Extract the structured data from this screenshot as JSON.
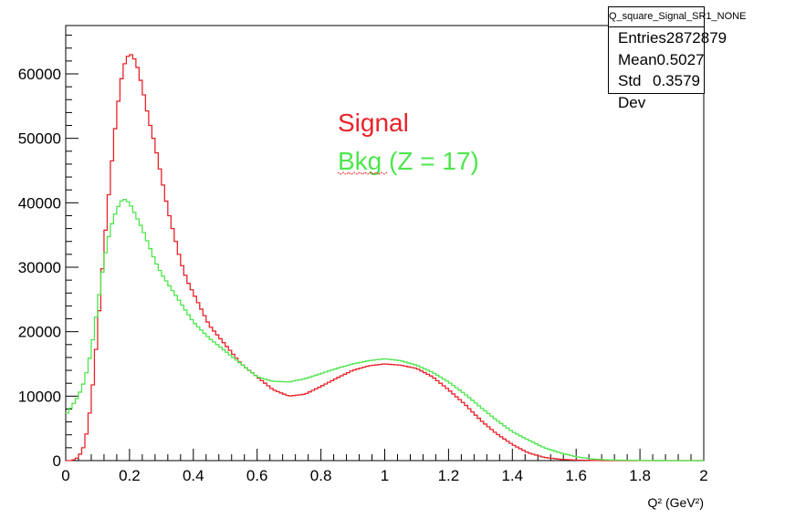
{
  "chart_data": {
    "type": "line",
    "title": "",
    "xlabel": "Q² (GeV²)",
    "ylabel": "",
    "xlim": [
      0,
      2
    ],
    "ylim": [
      0,
      67500
    ],
    "x_ticks": [
      0,
      0.2,
      0.4,
      0.6,
      0.8,
      1,
      1.2,
      1.4,
      1.6,
      1.8,
      2
    ],
    "x_tick_labels": [
      "0",
      "0.2",
      "0.4",
      "0.6",
      "0.8",
      "1",
      "1.2",
      "1.4",
      "1.6",
      "1.8",
      "2"
    ],
    "y_ticks": [
      0,
      10000,
      20000,
      30000,
      40000,
      50000,
      60000
    ],
    "y_tick_labels": [
      "0",
      "10000",
      "20000",
      "30000",
      "40000",
      "50000",
      "60000"
    ],
    "histogram": true,
    "series": [
      {
        "name": "Signal",
        "color": "#e8232a",
        "x": [
          0.02,
          0.04,
          0.06,
          0.08,
          0.1,
          0.12,
          0.14,
          0.16,
          0.18,
          0.2,
          0.22,
          0.24,
          0.26,
          0.28,
          0.3,
          0.32,
          0.34,
          0.36,
          0.38,
          0.4,
          0.42,
          0.45,
          0.5,
          0.55,
          0.6,
          0.65,
          0.7,
          0.75,
          0.8,
          0.85,
          0.9,
          0.95,
          1.0,
          1.05,
          1.1,
          1.15,
          1.2,
          1.25,
          1.3,
          1.35,
          1.4,
          1.45,
          1.5,
          1.55,
          1.6,
          1.65,
          1.7,
          1.8,
          1.9,
          2.0
        ],
        "values": [
          0,
          500,
          2500,
          9000,
          20000,
          33000,
          44000,
          54000,
          61000,
          63300,
          62000,
          58000,
          53000,
          49000,
          44000,
          39000,
          35000,
          31000,
          28000,
          26000,
          24000,
          21000,
          18000,
          15000,
          13000,
          11000,
          10000,
          10300,
          11500,
          12800,
          14000,
          14700,
          15000,
          14800,
          14300,
          13000,
          11000,
          8800,
          6300,
          4200,
          2500,
          1200,
          500,
          200,
          80,
          30,
          0,
          0,
          0,
          0
        ]
      },
      {
        "name": "Bkg (Z = 17)",
        "color": "#4de64d",
        "x": [
          0.0,
          0.02,
          0.04,
          0.06,
          0.08,
          0.1,
          0.12,
          0.14,
          0.16,
          0.18,
          0.2,
          0.22,
          0.24,
          0.26,
          0.28,
          0.3,
          0.32,
          0.34,
          0.36,
          0.38,
          0.4,
          0.42,
          0.45,
          0.5,
          0.55,
          0.6,
          0.65,
          0.7,
          0.75,
          0.8,
          0.85,
          0.9,
          0.95,
          1.0,
          1.05,
          1.1,
          1.15,
          1.2,
          1.25,
          1.3,
          1.35,
          1.4,
          1.45,
          1.5,
          1.55,
          1.6,
          1.65,
          1.7,
          1.8,
          1.9,
          2.0
        ],
        "values": [
          7000,
          8500,
          10000,
          12500,
          17000,
          24000,
          31000,
          36000,
          39000,
          40700,
          40000,
          38000,
          36000,
          33500,
          31000,
          29000,
          27500,
          26000,
          24500,
          23000,
          21500,
          20500,
          19000,
          17000,
          15000,
          13000,
          12300,
          12200,
          12700,
          13500,
          14300,
          15000,
          15500,
          15800,
          15500,
          14800,
          13700,
          12200,
          10400,
          8300,
          6300,
          4500,
          3200,
          2000,
          1200,
          600,
          250,
          100,
          20,
          0,
          0
        ]
      }
    ],
    "legend": {
      "position": "top-center",
      "entries": [
        {
          "label": "Signal",
          "color": "#e8232a"
        },
        {
          "label": "Bkg (Z = 17)",
          "color": "#4de64d"
        }
      ]
    },
    "stats": {
      "title": "Q_square_Signal_SR1_NONE",
      "rows": [
        {
          "label": "Entries",
          "value": "2872879"
        },
        {
          "label": "Mean",
          "value": "0.5027"
        },
        {
          "label": "Std Dev",
          "value": "0.3579"
        }
      ]
    }
  }
}
